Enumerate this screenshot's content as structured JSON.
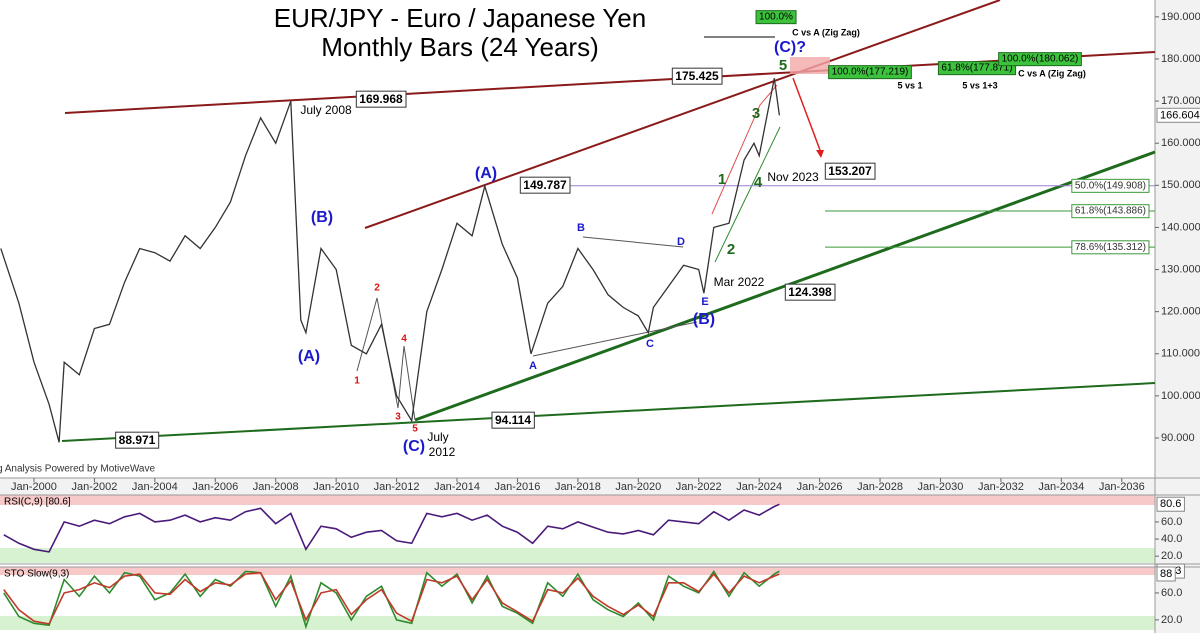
{
  "chart_data": [
    {
      "type": "line",
      "title": "EUR/JPY - Euro / Japanese Yen",
      "subtitle": "Monthly Bars (24 Years)",
      "color": "#333333",
      "x": [
        1998.9,
        1999.5,
        2000,
        2000.5,
        2000.83,
        2001,
        2001.5,
        2002,
        2002.5,
        2003,
        2003.5,
        2004,
        2004.5,
        2005,
        2005.5,
        2006,
        2006.5,
        2007,
        2007.5,
        2008,
        2008.5,
        2008.83,
        2009,
        2009.5,
        2010,
        2010.5,
        2011,
        2011.5,
        2012,
        2012.5,
        2013,
        2013.5,
        2014,
        2014.5,
        2014.92,
        2015.5,
        2016,
        2016.45,
        2017,
        2017.5,
        2018,
        2018.5,
        2019,
        2019.5,
        2020,
        2020.33,
        2020.5,
        2021,
        2021.5,
        2022,
        2022.17,
        2022.5,
        2023,
        2023.5,
        2023.83,
        2024,
        2024.5,
        2024.67
      ],
      "values": [
        135,
        122,
        108,
        98,
        88.971,
        108,
        105,
        116,
        117,
        127,
        135,
        134,
        132,
        138,
        135,
        140,
        146,
        157,
        166,
        160,
        169.968,
        118,
        115,
        135,
        130,
        112,
        110,
        117,
        100,
        94.114,
        120,
        130,
        141,
        138,
        149.787,
        136,
        128,
        110,
        122,
        126,
        135,
        130,
        124,
        121,
        119,
        115,
        121,
        126,
        131,
        130,
        124.398,
        140,
        141,
        156,
        160,
        157,
        175.425,
        166.604
      ],
      "xlim": [
        1998.875,
        2037.1
      ],
      "ylim": [
        80.5,
        194
      ],
      "xticks": [
        {
          "value": 2000,
          "label": "Jan-2000"
        },
        {
          "value": 2002,
          "label": "Jan-2002"
        },
        {
          "value": 2004,
          "label": "Jan-2004"
        },
        {
          "value": 2006,
          "label": "Jan-2006"
        },
        {
          "value": 2008,
          "label": "Jan-2008"
        },
        {
          "value": 2010,
          "label": "Jan-2010"
        },
        {
          "value": 2012,
          "label": "Jan-2012"
        },
        {
          "value": 2014,
          "label": "Jan-2014"
        },
        {
          "value": 2016,
          "label": "Jan-2016"
        },
        {
          "value": 2018,
          "label": "Jan-2018"
        },
        {
          "value": 2020,
          "label": "Jan-2020"
        },
        {
          "value": 2022,
          "label": "Jan-2022"
        },
        {
          "value": 2024,
          "label": "Jan-2024"
        },
        {
          "value": 2026,
          "label": "Jan-2026"
        },
        {
          "value": 2028,
          "label": "Jan-2028"
        },
        {
          "value": 2030,
          "label": "Jan-2030"
        },
        {
          "value": 2032,
          "label": "Jan-2032"
        },
        {
          "value": 2034,
          "label": "Jan-2034"
        },
        {
          "value": 2036,
          "label": "Jan-2036"
        }
      ],
      "yticks": [
        {
          "value": 90,
          "label": "90.000"
        },
        {
          "value": 100,
          "label": "100.000"
        },
        {
          "value": 110,
          "label": "110.000"
        },
        {
          "value": 120,
          "label": "120.000"
        },
        {
          "value": 130,
          "label": "130.000"
        },
        {
          "value": 140,
          "label": "140.000"
        },
        {
          "value": 150,
          "label": "150.000"
        },
        {
          "value": 160,
          "label": "160.000"
        },
        {
          "value": 170,
          "label": "170.000"
        },
        {
          "value": 180,
          "label": "180.000"
        },
        {
          "value": 190,
          "label": "190.000"
        }
      ],
      "grid": false,
      "levels": [
        {
          "value": 149.908,
          "label": "50.0%(149.908)"
        },
        {
          "value": 143.886,
          "label": "61.8%(143.886)"
        },
        {
          "value": 135.312,
          "label": "78.6%(135.312)"
        }
      ],
      "annotations": [
        "169.968",
        "175.425",
        "149.787",
        "153.207",
        "124.398",
        "94.114",
        "88.971",
        "(A)",
        "(B)",
        "(C)",
        "(A)",
        "(B)",
        "(C)?",
        "1",
        "2",
        "3",
        "4",
        "5",
        "A",
        "B",
        "C",
        "D",
        "E",
        "1",
        "2",
        "3",
        "4",
        "5",
        "July 2008",
        "July",
        "2012",
        "Nov 2023",
        "Mar 2022",
        "100.0%",
        "C vs A (Zig Zag)",
        "100.0%(177.219)",
        "61.8%(177.871)",
        "100.0%(180.062)",
        "5 vs 1",
        "5 vs 1+3",
        "C vs A (Zig Zag)",
        "Trading Analysis Powered by MotiveWave"
      ]
    },
    {
      "type": "line",
      "title": "RSI(C,9) [80.6]",
      "color": "#4b1b7a",
      "x": [
        1999,
        1999.5,
        2000,
        2000.5,
        2001,
        2001.5,
        2002,
        2002.5,
        2003,
        2003.5,
        2004,
        2004.5,
        2005,
        2005.5,
        2006,
        2006.5,
        2007,
        2007.5,
        2008,
        2008.5,
        2009,
        2009.5,
        2010,
        2010.5,
        2011,
        2011.5,
        2012,
        2012.5,
        2013,
        2013.5,
        2014,
        2014.5,
        2015,
        2015.5,
        2016,
        2016.5,
        2017,
        2017.5,
        2018,
        2018.5,
        2019,
        2019.5,
        2020,
        2020.5,
        2021,
        2021.5,
        2022,
        2022.5,
        2023,
        2023.5,
        2024,
        2024.5,
        2024.67
      ],
      "values": [
        45,
        35,
        28,
        25,
        60,
        55,
        62,
        58,
        66,
        70,
        60,
        62,
        68,
        60,
        65,
        62,
        72,
        76,
        58,
        70,
        28,
        55,
        52,
        42,
        48,
        50,
        38,
        35,
        70,
        66,
        70,
        62,
        68,
        55,
        48,
        35,
        55,
        52,
        60,
        54,
        48,
        46,
        50,
        45,
        62,
        60,
        58,
        72,
        62,
        74,
        68,
        78,
        80.6
      ],
      "xlim": [
        1998.875,
        2037.1
      ],
      "ylim": [
        12,
        91.5
      ],
      "yticks": [
        {
          "value": 20,
          "label": "20.0"
        },
        {
          "value": 40,
          "label": "40.0"
        },
        {
          "value": 60,
          "label": "60.0"
        }
      ]
    },
    {
      "type": "line",
      "title": "STO Slow(9,3)",
      "x": [
        1999,
        1999.5,
        2000,
        2000.5,
        2001,
        2001.5,
        2002,
        2002.5,
        2003,
        2003.5,
        2004,
        2004.5,
        2005,
        2005.5,
        2006,
        2006.5,
        2007,
        2007.5,
        2008,
        2008.5,
        2009,
        2009.5,
        2010,
        2010.5,
        2011,
        2011.5,
        2012,
        2012.5,
        2013,
        2013.5,
        2014,
        2014.5,
        2015,
        2015.5,
        2016,
        2016.5,
        2017,
        2017.5,
        2018,
        2018.5,
        2019,
        2019.5,
        2020,
        2020.5,
        2021,
        2021.5,
        2022,
        2022.5,
        2023,
        2023.5,
        2024,
        2024.5,
        2024.67
      ],
      "series": [
        {
          "color": "#2e8b2e",
          "values": [
            60,
            25,
            15,
            12,
            80,
            55,
            85,
            60,
            90,
            85,
            50,
            60,
            88,
            55,
            80,
            70,
            92,
            90,
            40,
            85,
            10,
            75,
            60,
            20,
            55,
            70,
            20,
            15,
            90,
            70,
            88,
            45,
            85,
            40,
            30,
            15,
            75,
            55,
            88,
            50,
            35,
            25,
            45,
            20,
            85,
            70,
            60,
            92,
            55,
            90,
            70,
            88,
            92.3
          ]
        },
        {
          "color": "#c0392b",
          "values": [
            65,
            35,
            18,
            14,
            60,
            65,
            75,
            68,
            85,
            88,
            60,
            58,
            80,
            62,
            75,
            72,
            88,
            90,
            50,
            78,
            20,
            60,
            65,
            28,
            50,
            65,
            30,
            18,
            80,
            75,
            85,
            50,
            80,
            45,
            32,
            18,
            65,
            60,
            82,
            55,
            40,
            28,
            42,
            25,
            75,
            75,
            62,
            88,
            60,
            85,
            75,
            85,
            88
          ]
        }
      ],
      "xlim": [
        1998.875,
        2037.1
      ],
      "ylim": [
        5,
        98.5
      ],
      "yticks": [
        {
          "value": 20,
          "label": "20.0"
        },
        {
          "value": 60,
          "label": "60.0"
        }
      ]
    }
  ]
}
